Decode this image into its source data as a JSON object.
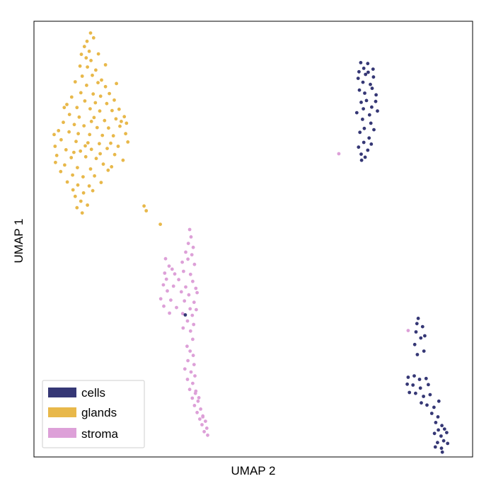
{
  "chart_data": {
    "type": "scatter",
    "title": "",
    "xlabel": "UMAP 2",
    "ylabel": "UMAP 1",
    "grid": false,
    "legend_position": "bottom-left",
    "xlim": [
      0,
      100
    ],
    "ylim": [
      0,
      100
    ],
    "series": [
      {
        "name": "cells",
        "color": "#353775",
        "points": [
          [
            74.5,
            90.5
          ],
          [
            75.2,
            89.2
          ],
          [
            76.1,
            90.3
          ],
          [
            74.1,
            88.4
          ],
          [
            75.6,
            87.8
          ],
          [
            77.3,
            89.0
          ],
          [
            75.0,
            86.0
          ],
          [
            77.1,
            84.6
          ],
          [
            74.2,
            84.2
          ],
          [
            76.7,
            85.5
          ],
          [
            75.4,
            83.5
          ],
          [
            78.0,
            83.1
          ],
          [
            74.6,
            81.4
          ],
          [
            77.0,
            80.3
          ],
          [
            75.1,
            79.9
          ],
          [
            76.5,
            78.5
          ],
          [
            78.3,
            79.4
          ],
          [
            74.9,
            77.5
          ],
          [
            76.8,
            76.6
          ],
          [
            75.3,
            75.4
          ],
          [
            77.5,
            75.1
          ],
          [
            74.3,
            74.5
          ],
          [
            76.4,
            73.2
          ],
          [
            75.2,
            72.2
          ],
          [
            76.1,
            70.4
          ],
          [
            74.6,
            69.5
          ],
          [
            75.5,
            68.8
          ],
          [
            74.0,
            71.1
          ],
          [
            77.9,
            81.6
          ],
          [
            73.6,
            79.0
          ],
          [
            76.2,
            88.3
          ],
          [
            77.4,
            87.2
          ],
          [
            73.9,
            86.9
          ],
          [
            75.8,
            81.8
          ],
          [
            76.9,
            71.8
          ],
          [
            74.7,
            68.1
          ],
          [
            87.6,
            31.8
          ],
          [
            87.3,
            30.6
          ],
          [
            88.6,
            29.9
          ],
          [
            87.1,
            28.7
          ],
          [
            88.2,
            27.3
          ],
          [
            86.8,
            25.8
          ],
          [
            88.9,
            24.3
          ],
          [
            87.4,
            23.5
          ],
          [
            85.3,
            18.3
          ],
          [
            86.7,
            18.6
          ],
          [
            87.9,
            17.8
          ],
          [
            89.4,
            18.0
          ],
          [
            85.1,
            16.7
          ],
          [
            86.4,
            16.5
          ],
          [
            88.1,
            15.8
          ],
          [
            89.9,
            16.6
          ],
          [
            85.6,
            14.8
          ],
          [
            87.0,
            14.6
          ],
          [
            88.8,
            13.9
          ],
          [
            90.3,
            14.3
          ],
          [
            88.3,
            12.4
          ],
          [
            89.6,
            11.9
          ],
          [
            91.2,
            11.4
          ],
          [
            90.7,
            10.0
          ],
          [
            92.1,
            9.2
          ],
          [
            91.6,
            7.9
          ],
          [
            93.0,
            7.2
          ],
          [
            92.2,
            6.2
          ],
          [
            93.6,
            6.4
          ],
          [
            91.3,
            5.4
          ],
          [
            92.8,
            4.8
          ],
          [
            94.1,
            5.6
          ],
          [
            93.4,
            3.7
          ],
          [
            92.0,
            3.3
          ],
          [
            91.5,
            2.3
          ],
          [
            92.9,
            2.0
          ],
          [
            94.3,
            3.1
          ],
          [
            93.1,
            1.1
          ],
          [
            92.3,
            12.8
          ],
          [
            89.1,
            27.8
          ],
          [
            34.5,
            32.6
          ]
        ]
      },
      {
        "name": "glands",
        "color": "#e8b84a",
        "points": [
          [
            12.1,
            95.4
          ],
          [
            11.5,
            94.2
          ],
          [
            12.6,
            93.1
          ],
          [
            10.8,
            92.4
          ],
          [
            11.9,
            91.6
          ],
          [
            13.0,
            91.0
          ],
          [
            10.5,
            89.7
          ],
          [
            12.2,
            89.5
          ],
          [
            14.1,
            88.8
          ],
          [
            11.0,
            87.4
          ],
          [
            13.3,
            87.6
          ],
          [
            15.4,
            86.5
          ],
          [
            9.4,
            86.1
          ],
          [
            12.0,
            85.3
          ],
          [
            14.6,
            85.9
          ],
          [
            16.3,
            85.0
          ],
          [
            10.7,
            83.6
          ],
          [
            13.5,
            83.3
          ],
          [
            15.2,
            82.8
          ],
          [
            17.2,
            83.4
          ],
          [
            8.6,
            82.6
          ],
          [
            11.6,
            81.7
          ],
          [
            14.0,
            81.3
          ],
          [
            16.6,
            81.1
          ],
          [
            18.3,
            81.9
          ],
          [
            7.5,
            80.9
          ],
          [
            9.8,
            80.2
          ],
          [
            12.8,
            79.9
          ],
          [
            15.0,
            79.4
          ],
          [
            17.8,
            79.5
          ],
          [
            19.4,
            79.8
          ],
          [
            8.1,
            78.6
          ],
          [
            10.3,
            78.0
          ],
          [
            13.7,
            77.9
          ],
          [
            16.1,
            77.2
          ],
          [
            18.7,
            77.6
          ],
          [
            20.6,
            78.1
          ],
          [
            6.7,
            76.8
          ],
          [
            9.2,
            76.3
          ],
          [
            11.4,
            76.0
          ],
          [
            14.4,
            75.6
          ],
          [
            17.0,
            75.5
          ],
          [
            19.6,
            75.9
          ],
          [
            5.6,
            74.9
          ],
          [
            8.0,
            74.6
          ],
          [
            10.1,
            74.2
          ],
          [
            12.7,
            74.0
          ],
          [
            15.6,
            73.8
          ],
          [
            18.1,
            73.7
          ],
          [
            20.9,
            74.2
          ],
          [
            6.2,
            72.8
          ],
          [
            9.6,
            72.4
          ],
          [
            12.3,
            72.1
          ],
          [
            14.9,
            71.9
          ],
          [
            17.5,
            72.0
          ],
          [
            4.8,
            71.3
          ],
          [
            7.3,
            70.5
          ],
          [
            10.6,
            70.2
          ],
          [
            13.1,
            70.6
          ],
          [
            16.7,
            70.8
          ],
          [
            19.2,
            71.3
          ],
          [
            21.4,
            72.3
          ],
          [
            5.2,
            69.2
          ],
          [
            8.5,
            68.7
          ],
          [
            11.8,
            68.9
          ],
          [
            14.2,
            68.5
          ],
          [
            18.4,
            69.4
          ],
          [
            4.9,
            67.6
          ],
          [
            7.0,
            67.0
          ],
          [
            9.9,
            66.4
          ],
          [
            12.9,
            66.1
          ],
          [
            15.8,
            67.2
          ],
          [
            20.3,
            68.1
          ],
          [
            6.1,
            65.5
          ],
          [
            8.8,
            64.7
          ],
          [
            11.2,
            64.3
          ],
          [
            13.8,
            64.5
          ],
          [
            16.9,
            65.8
          ],
          [
            7.6,
            63.1
          ],
          [
            10.0,
            62.4
          ],
          [
            12.6,
            62.2
          ],
          [
            15.3,
            63.0
          ],
          [
            17.7,
            66.6
          ],
          [
            8.9,
            61.3
          ],
          [
            11.3,
            60.6
          ],
          [
            13.4,
            61.1
          ],
          [
            9.4,
            59.8
          ],
          [
            10.7,
            58.7
          ],
          [
            12.2,
            57.8
          ],
          [
            9.8,
            57.2
          ],
          [
            11.0,
            56.0
          ],
          [
            25.1,
            57.6
          ],
          [
            25.6,
            56.5
          ],
          [
            28.8,
            53.4
          ],
          [
            21.1,
            76.6
          ],
          [
            6.9,
            80.2
          ],
          [
            16.3,
            90.0
          ],
          [
            18.8,
            85.7
          ],
          [
            19.9,
            77.0
          ],
          [
            4.6,
            74.0
          ],
          [
            13.1,
            77.0
          ],
          [
            11.7,
            71.4
          ],
          [
            15.1,
            69.6
          ],
          [
            9.1,
            69.9
          ],
          [
            14.7,
            92.5
          ],
          [
            13.6,
            96.2
          ],
          [
            12.9,
            97.3
          ]
        ]
      },
      {
        "name": "stroma",
        "color": "#dda0d8",
        "points": [
          [
            35.5,
            52.2
          ],
          [
            35.8,
            50.5
          ],
          [
            35.2,
            49.0
          ],
          [
            36.3,
            48.1
          ],
          [
            34.6,
            47.0
          ],
          [
            36.0,
            46.4
          ],
          [
            35.1,
            45.4
          ],
          [
            33.8,
            44.7
          ],
          [
            36.6,
            44.2
          ],
          [
            30.8,
            43.8
          ],
          [
            31.5,
            43.1
          ],
          [
            29.8,
            42.2
          ],
          [
            32.1,
            42.0
          ],
          [
            34.1,
            42.6
          ],
          [
            35.7,
            41.9
          ],
          [
            30.2,
            40.8
          ],
          [
            33.0,
            40.7
          ],
          [
            36.2,
            40.3
          ],
          [
            29.5,
            39.5
          ],
          [
            31.8,
            39.2
          ],
          [
            34.6,
            39.0
          ],
          [
            36.9,
            38.7
          ],
          [
            30.4,
            38.1
          ],
          [
            33.6,
            37.9
          ],
          [
            35.3,
            37.2
          ],
          [
            37.2,
            37.7
          ],
          [
            28.9,
            36.3
          ],
          [
            31.2,
            36.0
          ],
          [
            34.3,
            35.8
          ],
          [
            36.5,
            35.5
          ],
          [
            29.6,
            34.6
          ],
          [
            32.5,
            34.3
          ],
          [
            35.6,
            34.0
          ],
          [
            37.0,
            33.8
          ],
          [
            30.9,
            33.0
          ],
          [
            33.9,
            32.9
          ],
          [
            36.1,
            32.5
          ],
          [
            35.0,
            31.2
          ],
          [
            36.4,
            30.4
          ],
          [
            34.0,
            29.6
          ],
          [
            35.7,
            28.9
          ],
          [
            36.2,
            27.0
          ],
          [
            34.9,
            25.4
          ],
          [
            35.6,
            24.3
          ],
          [
            36.3,
            23.3
          ],
          [
            35.1,
            22.1
          ],
          [
            36.5,
            21.2
          ],
          [
            34.4,
            20.2
          ],
          [
            35.8,
            19.5
          ],
          [
            36.7,
            18.6
          ],
          [
            35.0,
            17.8
          ],
          [
            36.2,
            16.9
          ],
          [
            35.5,
            15.5
          ],
          [
            36.8,
            14.6
          ],
          [
            36.1,
            13.5
          ],
          [
            37.4,
            12.8
          ],
          [
            36.6,
            11.8
          ],
          [
            38.0,
            11.0
          ],
          [
            37.2,
            10.2
          ],
          [
            38.5,
            9.4
          ],
          [
            37.8,
            8.7
          ],
          [
            39.1,
            8.2
          ],
          [
            38.3,
            7.4
          ],
          [
            39.4,
            6.6
          ],
          [
            38.8,
            5.8
          ],
          [
            39.6,
            5.0
          ],
          [
            38.5,
            9.2
          ],
          [
            36.9,
            15.1
          ],
          [
            37.6,
            13.6
          ],
          [
            69.5,
            69.6
          ],
          [
            85.3,
            29.0
          ],
          [
            30.0,
            45.5
          ]
        ]
      }
    ],
    "legend": [
      "cells",
      "glands",
      "stroma"
    ]
  }
}
